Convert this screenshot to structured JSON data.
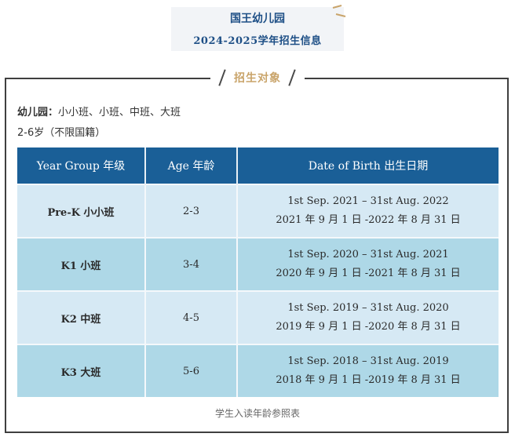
{
  "header": {
    "school_name": "国王幼儿园",
    "year_title": "2024-2025学年招生信息"
  },
  "section": {
    "title": "招生对象"
  },
  "kindergarten": {
    "label": "幼儿园：",
    "classes": "小小班、小班、中班、大班",
    "age_range": "2-6岁（不限国籍）"
  },
  "table": {
    "headers": [
      "Year Group 年级",
      "Age 年龄",
      "Date of Birth 出生日期"
    ],
    "rows": [
      {
        "group": "Pre-K 小小班",
        "age": "2-3",
        "dob_en": "1st Sep. 2021 – 31st Aug. 2022",
        "dob_cn": "2021 年 9 月 1 日 -2022 年 8 月 31 日"
      },
      {
        "group": "K1 小班",
        "age": "3-4",
        "dob_en": "1st Sep. 2020 – 31st Aug. 2021",
        "dob_cn": "2020 年 9 月 1 日 -2021 年 8 月 31 日"
      },
      {
        "group": "K2 中班",
        "age": "4-5",
        "dob_en": "1st Sep. 2019 – 31st Aug. 2020",
        "dob_cn": "2019 年 9 月 1 日 -2020 年 8 月 31 日"
      },
      {
        "group": "K3 大班",
        "age": "5-6",
        "dob_en": "1st Sep. 2018 – 31st Aug. 2019",
        "dob_cn": "2018 年 9 月 1 日 -2019 年 8 月 31 日"
      }
    ]
  },
  "caption": "学生入读年龄参照表",
  "colors": {
    "header_blue": "#1a5f97",
    "row_light": "#d6e9f4",
    "row_dark": "#aed8e7",
    "accent_gold": "#c9a46a",
    "title_blue": "#1e4f86"
  }
}
